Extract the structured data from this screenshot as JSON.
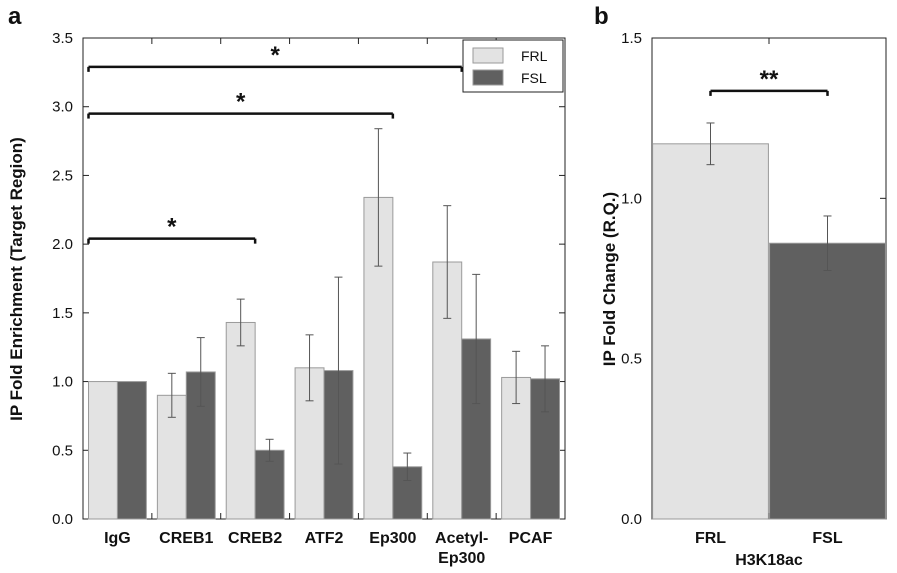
{
  "chart_data": [
    {
      "panel": "a",
      "type": "bar",
      "ylabel": "IP Fold Enrichment (Target Region)",
      "xlabel": "",
      "ylim": [
        0,
        3.5
      ],
      "yticks": [
        "0.0",
        "0.5",
        "1.0",
        "1.5",
        "2.0",
        "2.5",
        "3.0",
        "3.5"
      ],
      "categories": [
        "IgG",
        "CREB1",
        "CREB2",
        "ATF2",
        "Ep300",
        "Acetyl-\nEp300",
        "PCAF"
      ],
      "series": [
        {
          "name": "FRL",
          "color": "#e3e3e3",
          "values": [
            1.0,
            0.9,
            1.43,
            1.1,
            2.34,
            1.87,
            1.03
          ],
          "errors": [
            0,
            0.16,
            0.17,
            0.24,
            0.5,
            0.41,
            0.19
          ]
        },
        {
          "name": "FSL",
          "color": "#606060",
          "values": [
            1.0,
            1.07,
            0.5,
            1.08,
            0.38,
            1.31,
            1.02
          ],
          "errors": [
            0,
            0.25,
            0.08,
            0.68,
            0.1,
            0.47,
            0.24
          ]
        }
      ],
      "legend_position": "top-right",
      "significance": [
        {
          "from": 0,
          "to": 5,
          "y": 3.29,
          "label": "*"
        },
        {
          "from": 0,
          "to": 4,
          "y": 2.95,
          "label": "*"
        },
        {
          "from": 0,
          "to": 2,
          "y": 2.04,
          "label": "*"
        }
      ]
    },
    {
      "panel": "b",
      "type": "bar",
      "ylabel": "IP Fold Change (R.Q.)",
      "xlabel": "H3K18ac",
      "ylim": [
        0,
        1.5
      ],
      "yticks": [
        "0.0",
        "0.5",
        "1.0",
        "1.5"
      ],
      "categories": [
        "FRL",
        "FSL"
      ],
      "values": [
        1.17,
        0.86
      ],
      "errors": [
        0.065,
        0.085
      ],
      "colors": [
        "#e3e3e3",
        "#606060"
      ],
      "significance": [
        {
          "from": 0,
          "to": 1,
          "y": 1.335,
          "label": "**"
        }
      ]
    }
  ]
}
